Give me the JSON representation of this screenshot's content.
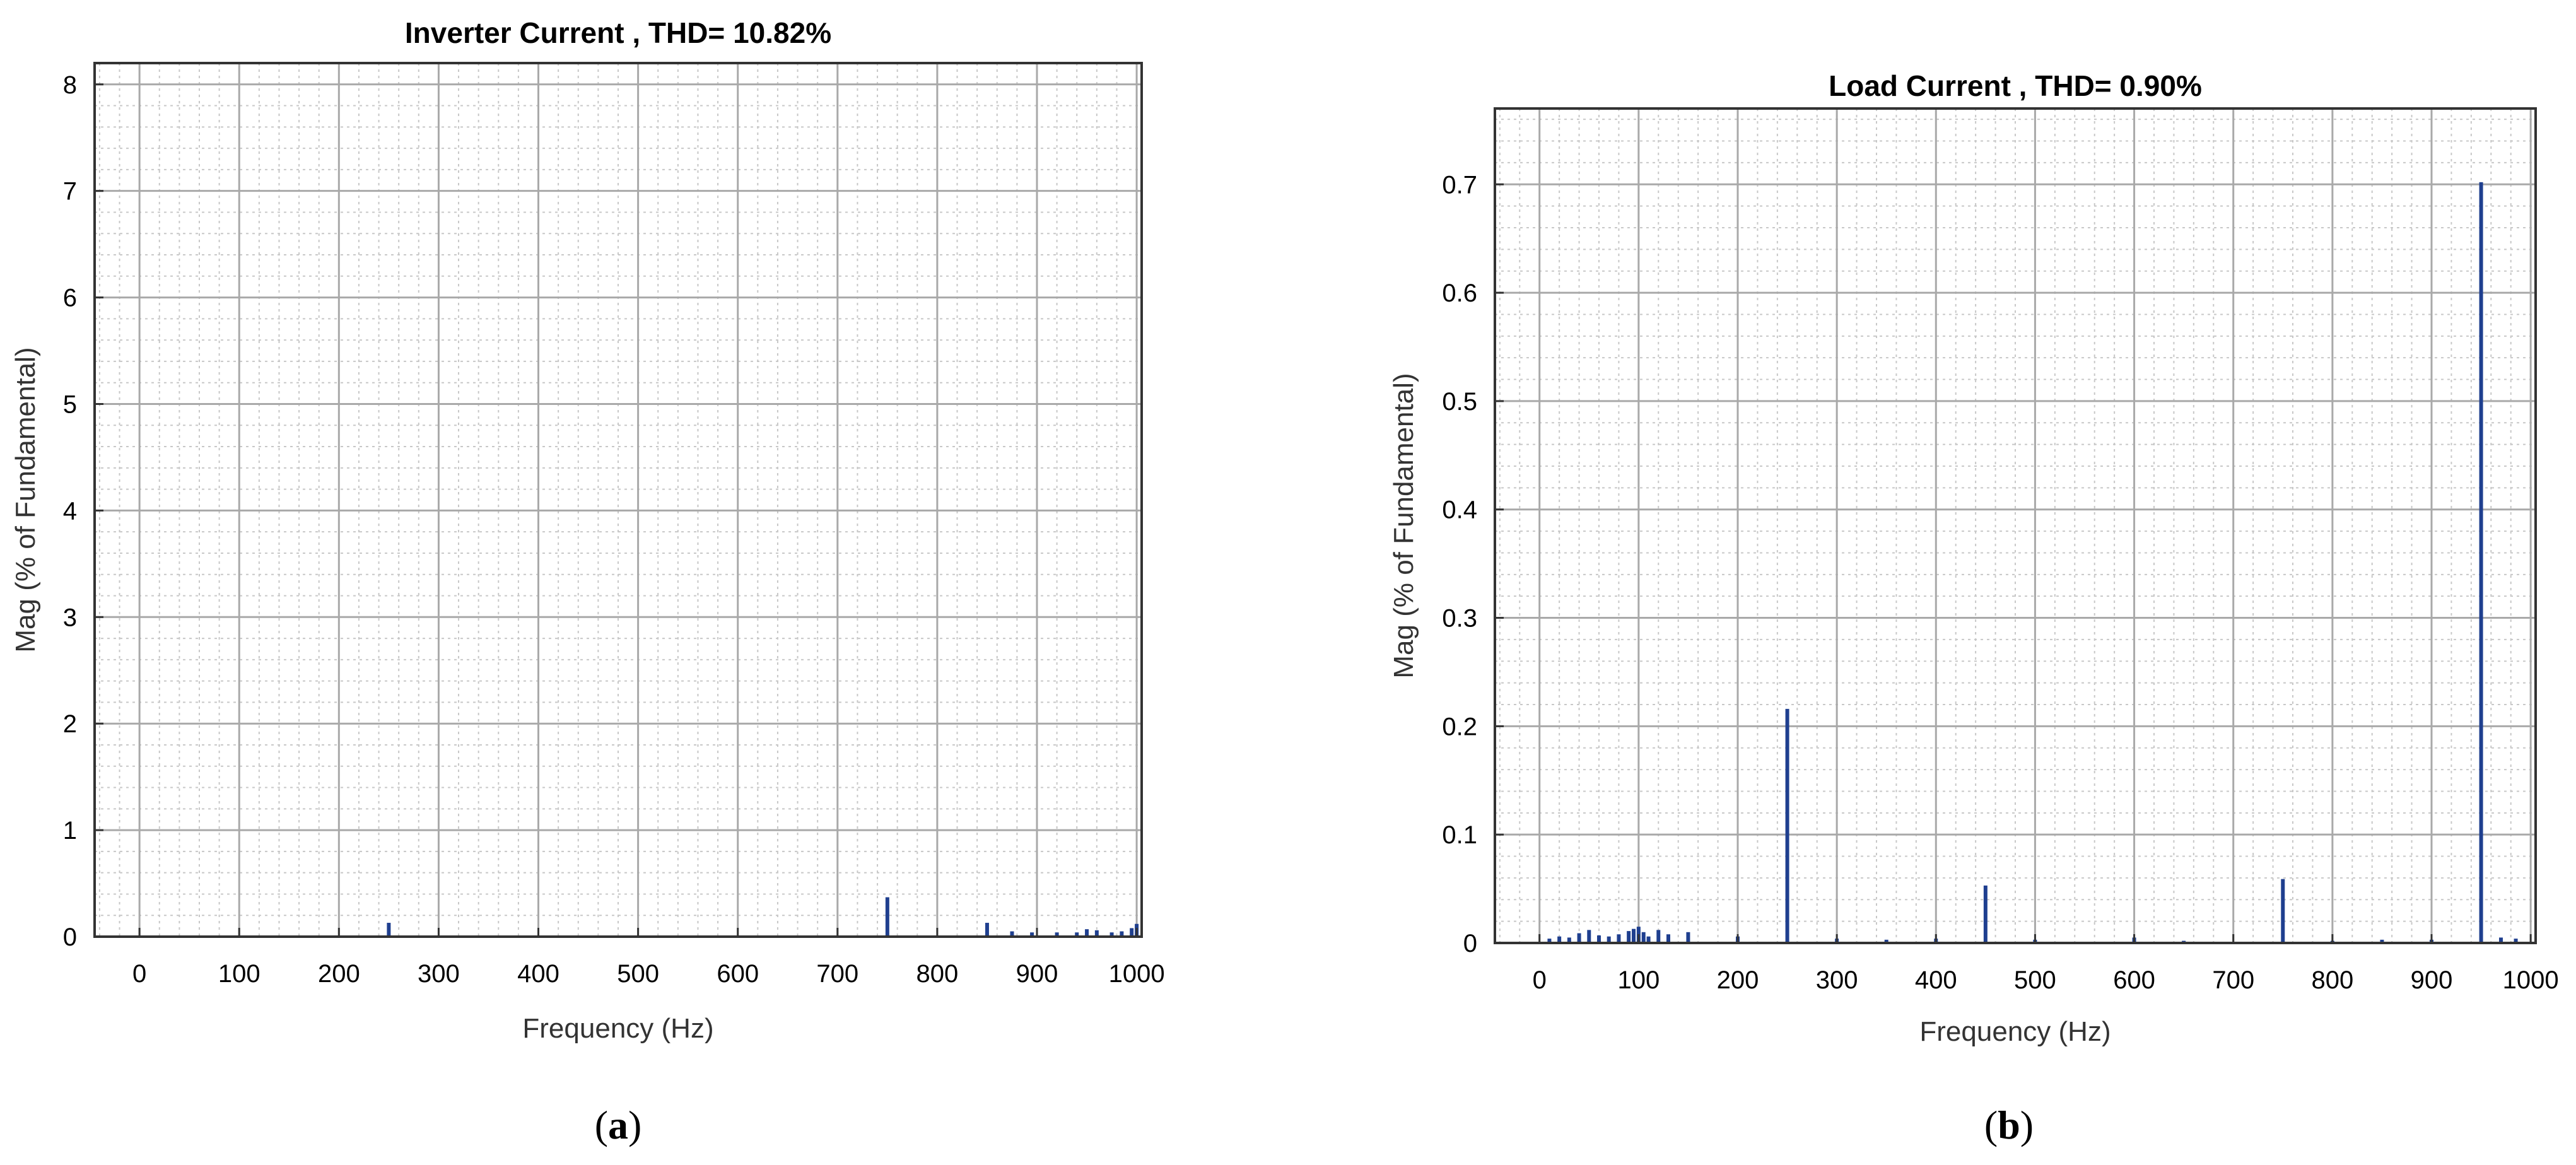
{
  "chart_data": [
    {
      "type": "bar",
      "title": "Inverter Current , THD= 10.82%",
      "xlabel": "Frequency (Hz)",
      "ylabel": "Mag (% of Fundamental)",
      "xlim": [
        -45,
        1005
      ],
      "ylim": [
        0,
        8.2
      ],
      "xticks": [
        0,
        100,
        200,
        300,
        400,
        500,
        600,
        700,
        800,
        900,
        1000
      ],
      "yticks": [
        0,
        1,
        2,
        3,
        4,
        5,
        6,
        7,
        8
      ],
      "grid": true,
      "minor_grid": true,
      "color": "#1f3f8f",
      "x": [
        250,
        750,
        850,
        875,
        895,
        920,
        940,
        950,
        960,
        975,
        985,
        995,
        1000
      ],
      "values": [
        0.13,
        0.37,
        0.13,
        0.05,
        0.04,
        0.04,
        0.04,
        0.07,
        0.06,
        0.04,
        0.05,
        0.08,
        0.12
      ],
      "panel_label": "a"
    },
    {
      "type": "bar",
      "title": "Load Current  , THD= 0.90%",
      "xlabel": "Frequency (Hz)",
      "ylabel": "Mag (% of Fundamental)",
      "xlim": [
        -45,
        1005
      ],
      "ylim": [
        0,
        0.77
      ],
      "xticks": [
        0,
        100,
        200,
        300,
        400,
        500,
        600,
        700,
        800,
        900,
        1000
      ],
      "yticks": [
        0,
        0.1,
        0.2,
        0.3,
        0.4,
        0.5,
        0.6,
        0.7
      ],
      "grid": true,
      "minor_grid": true,
      "color": "#1f3f8f",
      "x": [
        10,
        20,
        30,
        40,
        50,
        60,
        70,
        80,
        90,
        95,
        100,
        105,
        110,
        120,
        130,
        150,
        200,
        250,
        300,
        350,
        400,
        450,
        500,
        600,
        650,
        750,
        800,
        850,
        900,
        950,
        970,
        985
      ],
      "values": [
        0.004,
        0.006,
        0.005,
        0.009,
        0.012,
        0.007,
        0.006,
        0.008,
        0.011,
        0.013,
        0.015,
        0.01,
        0.006,
        0.012,
        0.008,
        0.01,
        0.006,
        0.216,
        0.004,
        0.003,
        0.004,
        0.053,
        0.003,
        0.005,
        0.002,
        0.059,
        0.002,
        0.003,
        0.003,
        0.702,
        0.005,
        0.004
      ],
      "panel_label": "b"
    }
  ]
}
